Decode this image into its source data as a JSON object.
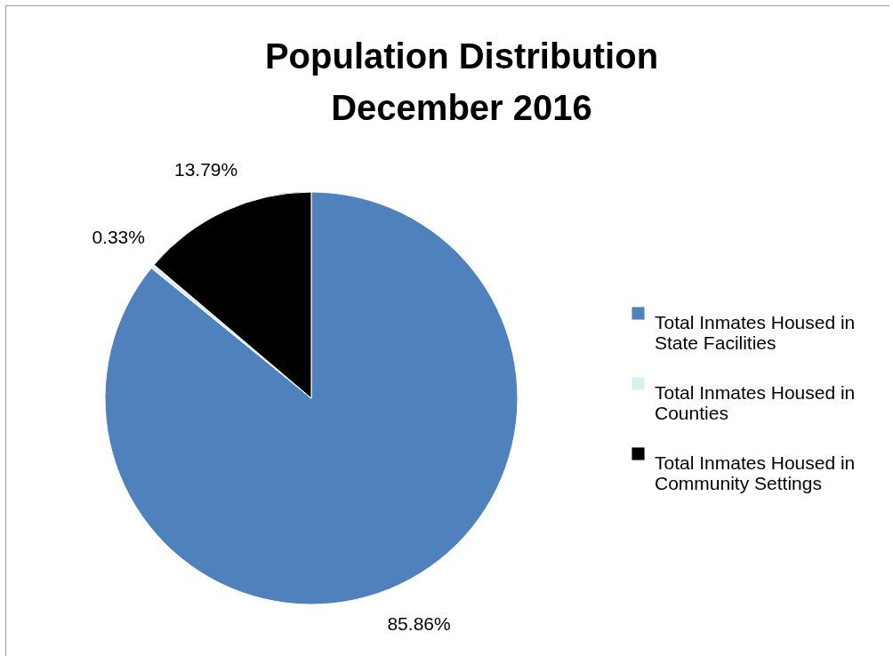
{
  "chart_data": {
    "type": "pie",
    "title": "Population Distribution\nDecember 2016",
    "categories": [
      "Total Inmates Housed in State Facilities",
      "Total Inmates Housed in Counties",
      "Total Inmates Housed in Community Settings"
    ],
    "values": [
      85.86,
      0.33,
      13.79
    ],
    "colors": [
      "#4f81bd",
      "#dbeef4",
      "#000000"
    ],
    "value_labels": [
      "85.86%",
      "0.33%",
      "13.79%"
    ],
    "legend": "right"
  }
}
